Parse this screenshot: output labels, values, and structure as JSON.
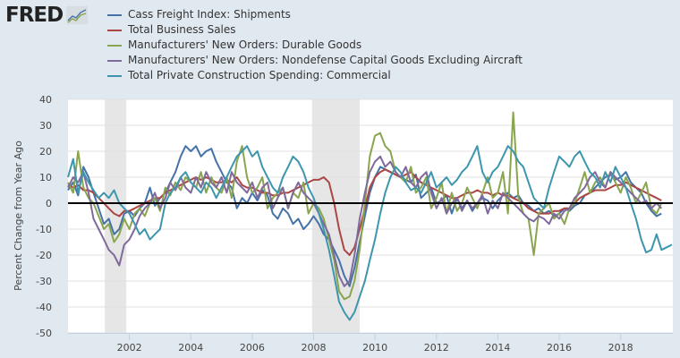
{
  "brand": {
    "name": "FRED"
  },
  "chart_data": {
    "type": "line",
    "title": "",
    "xlabel": "",
    "ylabel": "Percent Change from Year Ago",
    "ylim": [
      -50,
      40
    ],
    "xlim": [
      2000.0,
      2019.7
    ],
    "yticks": [
      40,
      30,
      20,
      10,
      0,
      -10,
      -20,
      -30,
      -40,
      -50
    ],
    "xticks": [
      2002,
      2004,
      2006,
      2008,
      2010,
      2012,
      2014,
      2016,
      2018
    ],
    "grid": true,
    "legend_position": "top-left",
    "recessions": [
      [
        2001.2,
        2001.9
      ],
      [
        2007.95,
        2009.5
      ]
    ],
    "zero_line": true,
    "x": [
      2000.0,
      2000.17,
      2000.33,
      2000.5,
      2000.67,
      2000.83,
      2001.0,
      2001.17,
      2001.33,
      2001.5,
      2001.67,
      2001.83,
      2002.0,
      2002.17,
      2002.33,
      2002.5,
      2002.67,
      2002.83,
      2003.0,
      2003.17,
      2003.33,
      2003.5,
      2003.67,
      2003.83,
      2004.0,
      2004.17,
      2004.33,
      2004.5,
      2004.67,
      2004.83,
      2005.0,
      2005.17,
      2005.33,
      2005.5,
      2005.67,
      2005.83,
      2006.0,
      2006.17,
      2006.33,
      2006.5,
      2006.67,
      2006.83,
      2007.0,
      2007.17,
      2007.33,
      2007.5,
      2007.67,
      2007.83,
      2008.0,
      2008.17,
      2008.33,
      2008.5,
      2008.67,
      2008.83,
      2009.0,
      2009.17,
      2009.33,
      2009.5,
      2009.67,
      2009.83,
      2010.0,
      2010.17,
      2010.33,
      2010.5,
      2010.67,
      2010.83,
      2011.0,
      2011.17,
      2011.33,
      2011.5,
      2011.67,
      2011.83,
      2012.0,
      2012.17,
      2012.33,
      2012.5,
      2012.67,
      2012.83,
      2013.0,
      2013.17,
      2013.33,
      2013.5,
      2013.67,
      2013.83,
      2014.0,
      2014.17,
      2014.33,
      2014.5,
      2014.67,
      2014.83,
      2015.0,
      2015.17,
      2015.33,
      2015.5,
      2015.67,
      2015.83,
      2016.0,
      2016.17,
      2016.33,
      2016.5,
      2016.67,
      2016.83,
      2017.0,
      2017.17,
      2017.33,
      2017.5,
      2017.67,
      2017.83,
      2018.0,
      2018.17,
      2018.33,
      2018.5,
      2018.67,
      2018.83,
      2019.0,
      2019.17,
      2019.33,
      2019.5,
      2019.67
    ],
    "series": [
      {
        "name": "Cass Freight Index: Shipments",
        "color": "#4572a7",
        "values": [
          5,
          8,
          3,
          14,
          10,
          4,
          -2,
          -8,
          -6,
          -12,
          -10,
          -4,
          -3,
          -5,
          -2,
          0,
          6,
          -1,
          2,
          4,
          8,
          12,
          18,
          22,
          20,
          22,
          18,
          20,
          21,
          16,
          12,
          8,
          6,
          -2,
          2,
          0,
          4,
          1,
          5,
          3,
          -4,
          -6,
          -2,
          -4,
          -8,
          -6,
          -10,
          -8,
          -5,
          -8,
          -12,
          -14,
          -18,
          -22,
          -28,
          -32,
          -25,
          -15,
          -5,
          4,
          10,
          14,
          13,
          12,
          11,
          10,
          9,
          8,
          11,
          2,
          4,
          6,
          0,
          1,
          3,
          -4,
          2,
          -2,
          1,
          -3,
          0,
          2,
          1,
          -2,
          1,
          3,
          4,
          2,
          3,
          0,
          -1,
          -3,
          -2,
          -4,
          -3,
          -5,
          -4,
          -2,
          -3,
          -1,
          0,
          3,
          4,
          6,
          8,
          10,
          11,
          9,
          10,
          12,
          8,
          6,
          4,
          0,
          -3,
          -5,
          -4
        ]
      },
      {
        "name": "Total Business Sales",
        "color": "#aa4643",
        "values": [
          7,
          6,
          7,
          5,
          5,
          4,
          2,
          0,
          -2,
          -4,
          -5,
          -3,
          -3,
          -2,
          -1,
          0,
          1,
          2,
          2,
          4,
          5,
          6,
          7,
          8,
          9,
          10,
          9,
          10,
          9,
          8,
          8,
          9,
          8,
          10,
          7,
          6,
          6,
          5,
          4,
          4,
          3,
          3,
          4,
          4,
          5,
          6,
          7,
          8,
          9,
          9,
          10,
          8,
          0,
          -10,
          -18,
          -20,
          -17,
          -10,
          -2,
          6,
          10,
          12,
          13,
          12,
          11,
          10,
          11,
          12,
          10,
          8,
          7,
          6,
          5,
          4,
          3,
          2,
          2,
          3,
          4,
          4,
          5,
          4,
          4,
          3,
          4,
          3,
          3,
          2,
          1,
          0,
          -2,
          -3,
          -4,
          -4,
          -4,
          -3,
          -3,
          -2,
          -2,
          0,
          2,
          3,
          4,
          5,
          5,
          5,
          6,
          7,
          7,
          8,
          7,
          6,
          5,
          4,
          3,
          2,
          1
        ]
      },
      {
        "name": "Manufacturers' New Orders: Durable Goods",
        "color": "#89a54e",
        "values": [
          8,
          4,
          20,
          6,
          2,
          0,
          -5,
          -10,
          -8,
          -15,
          -12,
          -6,
          -10,
          -4,
          -2,
          -5,
          0,
          2,
          -3,
          6,
          3,
          8,
          5,
          10,
          8,
          6,
          12,
          4,
          10,
          6,
          4,
          10,
          2,
          16,
          22,
          10,
          4,
          6,
          10,
          -2,
          2,
          4,
          6,
          -2,
          4,
          2,
          8,
          -4,
          0,
          -2,
          -6,
          -14,
          -22,
          -34,
          -37,
          -36,
          -30,
          -18,
          0,
          18,
          26,
          27,
          22,
          20,
          12,
          10,
          8,
          14,
          4,
          6,
          10,
          -2,
          2,
          8,
          -4,
          4,
          -3,
          0,
          6,
          2,
          -2,
          4,
          10,
          2,
          4,
          12,
          -4,
          35,
          2,
          -4,
          -6,
          -20,
          -4,
          -2,
          0,
          -6,
          -4,
          -8,
          -2,
          0,
          6,
          12,
          4,
          8,
          10,
          6,
          12,
          8,
          4,
          10,
          6,
          0,
          4,
          8,
          -2,
          -4,
          0
        ]
      },
      {
        "name": "Manufacturers' New Orders: Nondefense Capital Goods Excluding Aircraft",
        "color": "#80699b",
        "values": [
          6,
          10,
          8,
          12,
          4,
          -6,
          -10,
          -14,
          -18,
          -20,
          -24,
          -16,
          -14,
          -10,
          -5,
          -2,
          0,
          4,
          -2,
          2,
          8,
          5,
          10,
          6,
          4,
          10,
          6,
          12,
          8,
          6,
          10,
          4,
          12,
          8,
          6,
          4,
          8,
          2,
          6,
          8,
          -2,
          2,
          6,
          -2,
          4,
          8,
          4,
          2,
          0,
          -4,
          -8,
          -12,
          -20,
          -28,
          -32,
          -30,
          -20,
          -6,
          4,
          12,
          16,
          18,
          14,
          16,
          12,
          10,
          14,
          8,
          6,
          10,
          12,
          4,
          -2,
          2,
          -4,
          0,
          2,
          -3,
          1,
          -2,
          0,
          3,
          -4,
          1,
          -2,
          4,
          2,
          0,
          -2,
          -4,
          -6,
          -7,
          -5,
          -6,
          -8,
          -4,
          -6,
          -3,
          -2,
          2,
          4,
          6,
          10,
          12,
          8,
          6,
          12,
          10,
          8,
          6,
          4,
          2,
          0,
          1,
          -2,
          0,
          -2
        ]
      },
      {
        "name": "Total Private Construction Spending: Commercial",
        "color": "#3d96ae",
        "values": [
          10,
          17,
          4,
          12,
          8,
          5,
          2,
          4,
          2,
          5,
          0,
          -2,
          -4,
          -8,
          -12,
          -10,
          -14,
          -12,
          -10,
          0,
          4,
          6,
          10,
          12,
          8,
          6,
          4,
          8,
          6,
          2,
          6,
          10,
          14,
          18,
          20,
          22,
          18,
          20,
          14,
          10,
          6,
          4,
          10,
          14,
          18,
          16,
          12,
          6,
          2,
          -4,
          -10,
          -18,
          -28,
          -38,
          -42,
          -45,
          -42,
          -36,
          -30,
          -22,
          -14,
          -4,
          4,
          10,
          14,
          12,
          8,
          5,
          6,
          4,
          8,
          12,
          6,
          8,
          10,
          7,
          9,
          12,
          14,
          18,
          22,
          12,
          8,
          12,
          14,
          18,
          22,
          20,
          16,
          14,
          8,
          2,
          0,
          -2,
          6,
          12,
          18,
          16,
          14,
          18,
          20,
          16,
          12,
          10,
          6,
          12,
          8,
          14,
          10,
          6,
          0,
          -6,
          -14,
          -19,
          -18,
          -12,
          -18,
          -17,
          -16
        ]
      }
    ]
  }
}
